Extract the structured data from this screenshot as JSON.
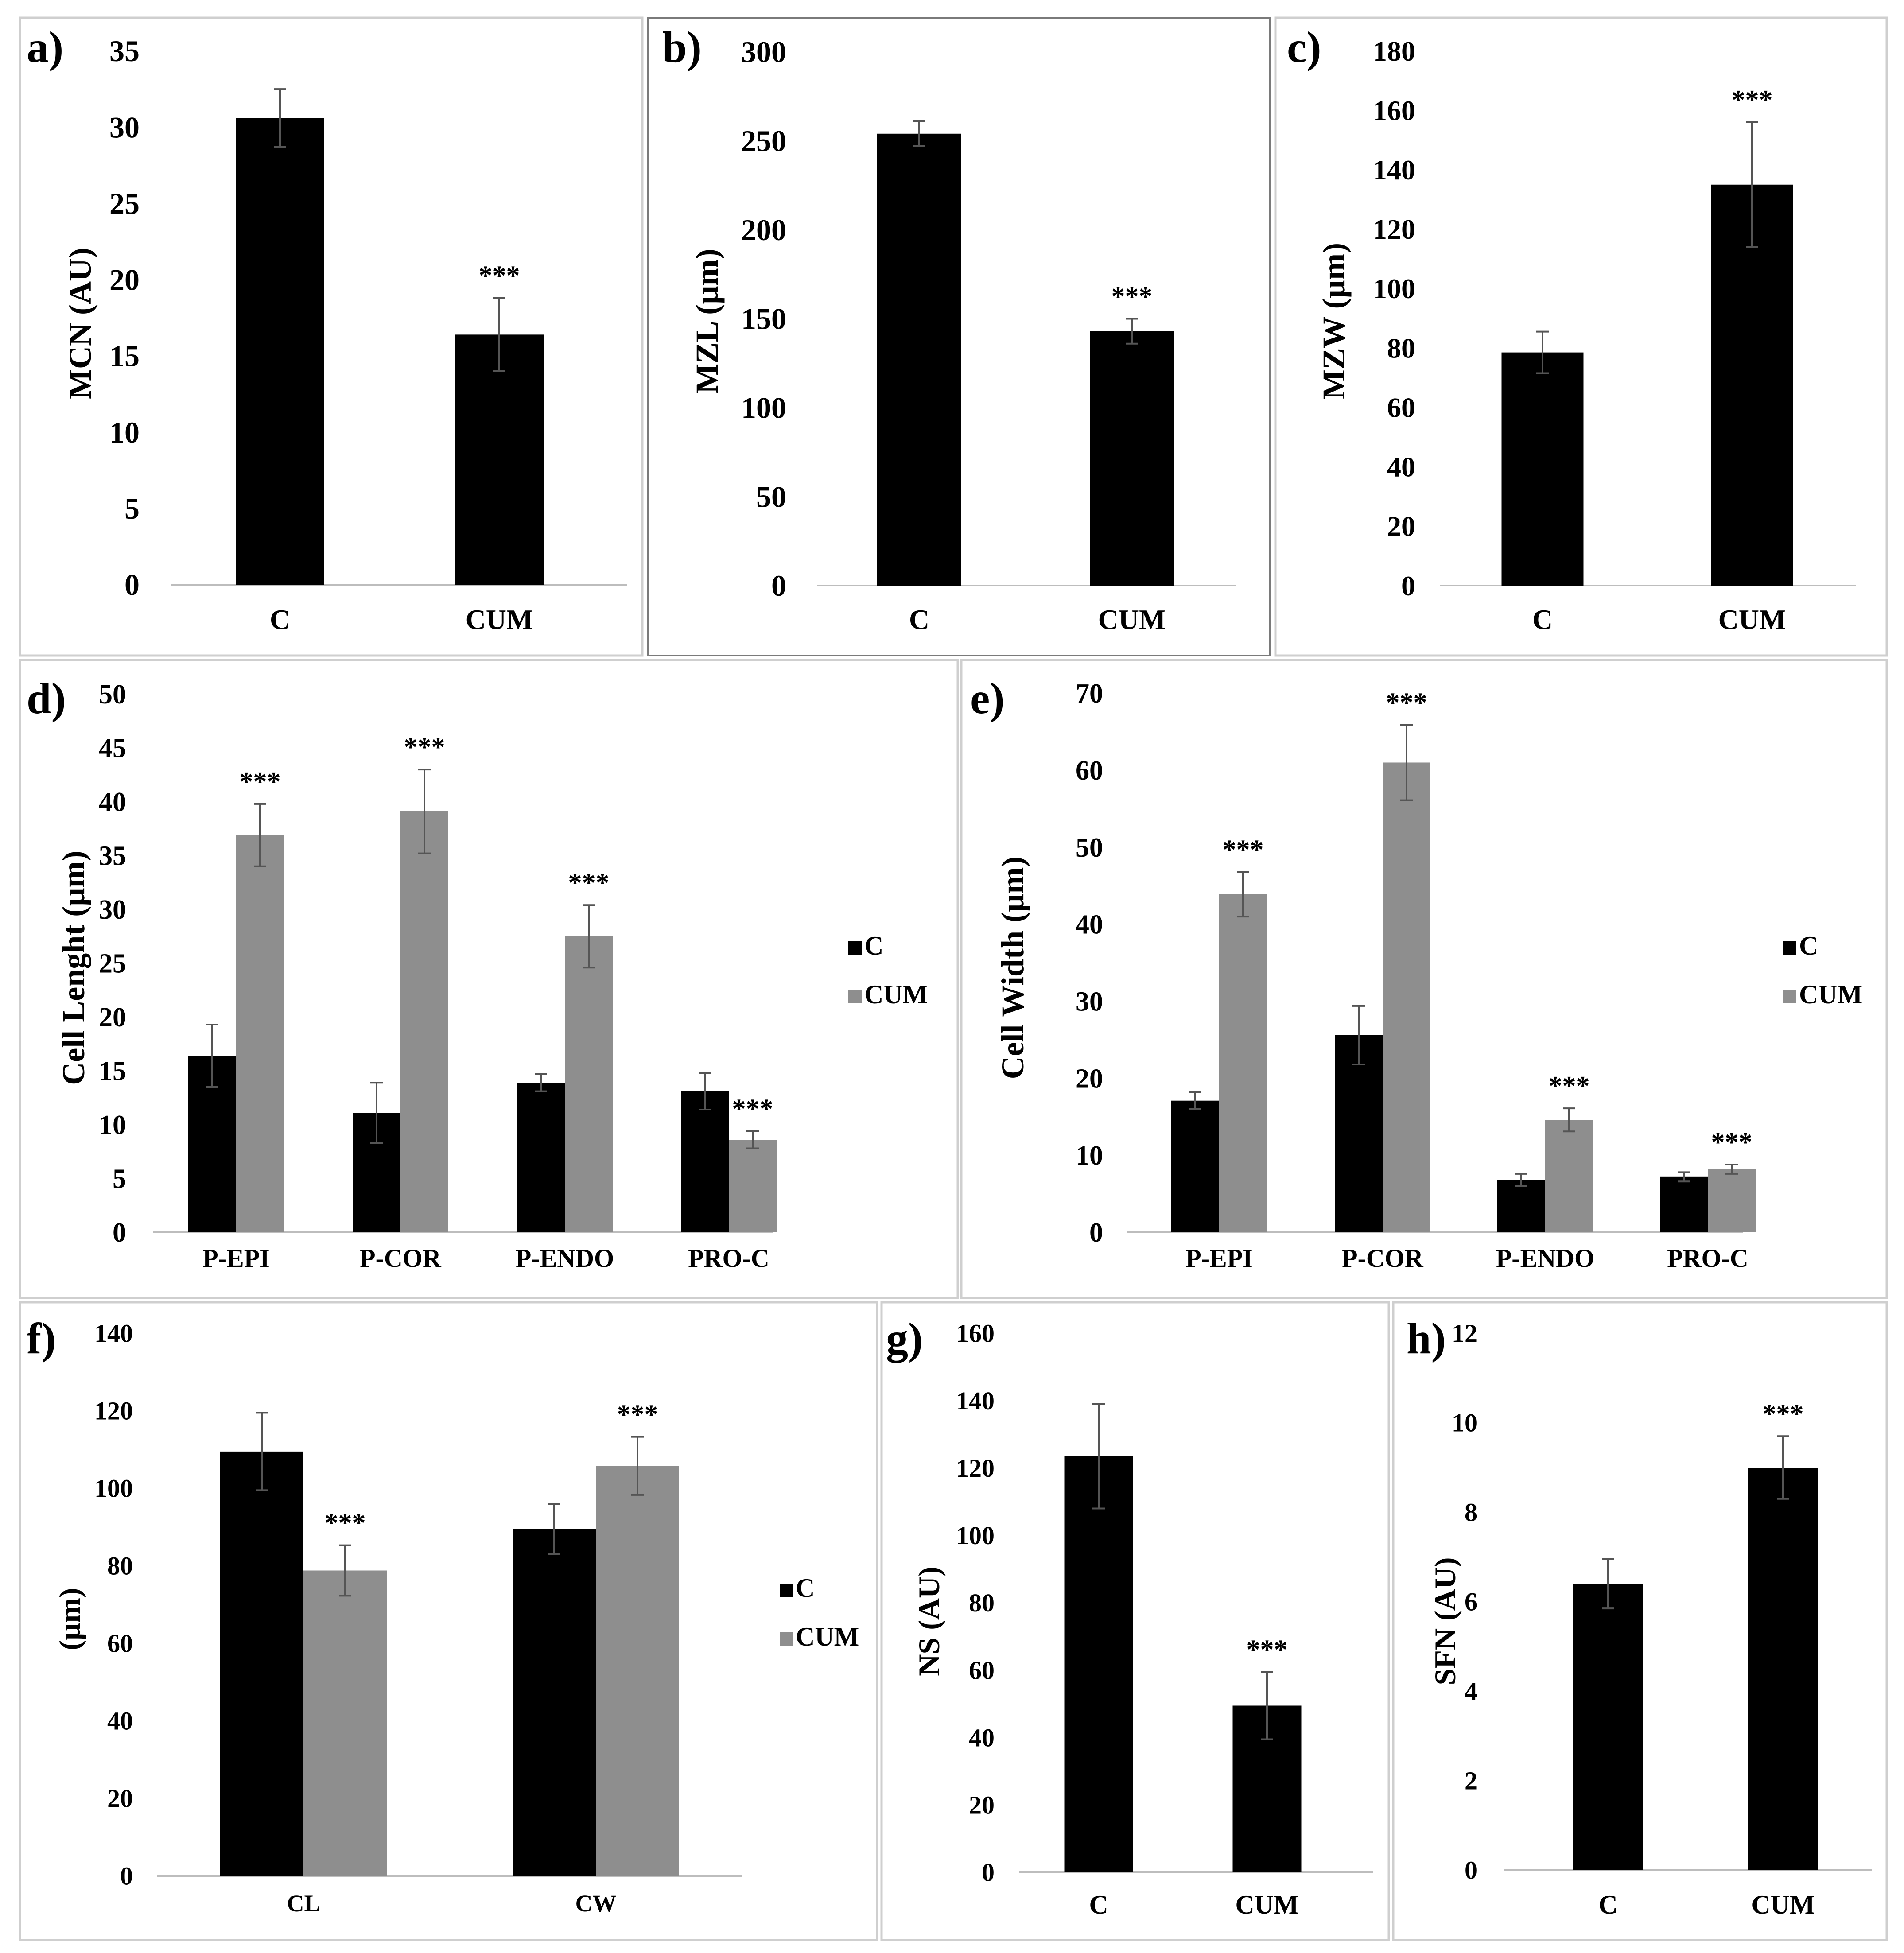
{
  "colors": {
    "C": "#000000",
    "CUM": "#8e8e8e",
    "axis": "#bdbdbd",
    "error": "#555555"
  },
  "chart_data": [
    {
      "panel": "a)",
      "type": "bar",
      "title": "",
      "xlabel": "",
      "ylabel": "MCN (AU)",
      "categories": [
        "C",
        "CUM"
      ],
      "yticks": [
        "0",
        "5",
        "10",
        "15",
        "20",
        "25",
        "30",
        "35"
      ],
      "ylim": [
        0,
        35
      ],
      "series": [
        {
          "name": "",
          "color_key": "C",
          "values": [
            30.6,
            16.4
          ],
          "errors": [
            1.9,
            2.4
          ]
        }
      ],
      "annotations": [
        "",
        "***"
      ],
      "legend": []
    },
    {
      "panel": "b)",
      "type": "bar",
      "title": "",
      "xlabel": "",
      "ylabel": "MZL (µm)",
      "categories": [
        "C",
        "CUM"
      ],
      "yticks": [
        "0",
        "50",
        "100",
        "150",
        "200",
        "250",
        "300"
      ],
      "ylim": [
        0,
        300
      ],
      "series": [
        {
          "name": "",
          "color_key": "C",
          "values": [
            254,
            143
          ],
          "errors": [
            7,
            7
          ]
        }
      ],
      "annotations": [
        "",
        "***"
      ],
      "legend": []
    },
    {
      "panel": "c)",
      "type": "bar",
      "title": "",
      "xlabel": "",
      "ylabel": "MZW (µm)",
      "categories": [
        "C",
        "CUM"
      ],
      "yticks": [
        "0",
        "20",
        "40",
        "60",
        "80",
        "100",
        "120",
        "140",
        "160",
        "180"
      ],
      "ylim": [
        0,
        180
      ],
      "series": [
        {
          "name": "",
          "color_key": "C",
          "values": [
            78.5,
            135
          ],
          "errors": [
            7,
            21
          ]
        }
      ],
      "annotations": [
        "",
        "***"
      ],
      "legend": []
    },
    {
      "panel": "d)",
      "type": "bar",
      "title": "",
      "xlabel": "",
      "ylabel": "Cell Lenght (µm)",
      "categories": [
        "P-EPI",
        "P-COR",
        "P-ENDO",
        "PRO-C"
      ],
      "yticks": [
        "0",
        "5",
        "10",
        "15",
        "20",
        "25",
        "30",
        "35",
        "40",
        "45",
        "50"
      ],
      "ylim": [
        0,
        50
      ],
      "series": [
        {
          "name": "C",
          "color_key": "C",
          "values": [
            16.4,
            11.1,
            13.9,
            13.1
          ],
          "errors": [
            2.9,
            2.8,
            0.8,
            1.7
          ]
        },
        {
          "name": "CUM",
          "color_key": "CUM",
          "values": [
            36.9,
            39.1,
            27.5,
            8.6
          ],
          "errors": [
            2.9,
            3.9,
            2.9,
            0.8
          ]
        }
      ],
      "annotations": [
        "***",
        "***",
        "***",
        "***"
      ],
      "legend": [
        "C",
        "CUM"
      ]
    },
    {
      "panel": "e)",
      "type": "bar",
      "title": "",
      "xlabel": "",
      "ylabel": "Cell Width (µm)",
      "categories": [
        "P-EPI",
        "P-COR",
        "P-ENDO",
        "PRO-C"
      ],
      "yticks": [
        "0",
        "10",
        "20",
        "30",
        "40",
        "50",
        "60",
        "70"
      ],
      "ylim": [
        0,
        70
      ],
      "series": [
        {
          "name": "C",
          "color_key": "C",
          "values": [
            17.1,
            25.6,
            6.8,
            7.2
          ],
          "errors": [
            1.1,
            3.8,
            0.8,
            0.6
          ]
        },
        {
          "name": "CUM",
          "color_key": "CUM",
          "values": [
            43.9,
            61,
            14.6,
            8.2
          ],
          "errors": [
            2.9,
            4.9,
            1.5,
            0.6
          ]
        }
      ],
      "annotations": [
        "***",
        "***",
        "***",
        "***"
      ],
      "legend": [
        "C",
        "CUM"
      ]
    },
    {
      "panel": "f)",
      "type": "bar",
      "title": "",
      "xlabel": "",
      "ylabel": "(µm)",
      "categories": [
        "CL",
        "CW"
      ],
      "yticks": [
        "0",
        "20",
        "40",
        "60",
        "80",
        "100",
        "120",
        "140"
      ],
      "ylim": [
        0,
        140
      ],
      "series": [
        {
          "name": "C",
          "color_key": "C",
          "values": [
            109.5,
            89.5
          ],
          "errors": [
            10,
            6.5
          ]
        },
        {
          "name": "CUM",
          "color_key": "CUM",
          "values": [
            78.8,
            105.8
          ],
          "errors": [
            6.5,
            7.5
          ]
        }
      ],
      "annotations": [
        "***",
        "***"
      ],
      "legend": [
        "C",
        "CUM"
      ]
    },
    {
      "panel": "g)",
      "type": "bar",
      "title": "",
      "xlabel": "",
      "ylabel": "NS (AU)",
      "categories": [
        "C",
        "CUM"
      ],
      "yticks": [
        "0",
        "20",
        "40",
        "60",
        "80",
        "100",
        "120",
        "140",
        "160"
      ],
      "ylim": [
        0,
        160
      ],
      "series": [
        {
          "name": "",
          "color_key": "C",
          "values": [
            123.5,
            49.5
          ],
          "errors": [
            15.5,
            10
          ]
        }
      ],
      "annotations": [
        "",
        "***"
      ],
      "legend": []
    },
    {
      "panel": "h)",
      "type": "bar",
      "title": "",
      "xlabel": "",
      "ylabel": "SFN (AU)",
      "categories": [
        "C",
        "CUM"
      ],
      "yticks": [
        "0",
        "2",
        "4",
        "6",
        "8",
        "10",
        "12"
      ],
      "ylim": [
        0,
        12
      ],
      "series": [
        {
          "name": "",
          "color_key": "C",
          "values": [
            6.4,
            9.0
          ],
          "errors": [
            0.55,
            0.7
          ]
        }
      ],
      "annotations": [
        "",
        "***"
      ],
      "legend": []
    }
  ]
}
